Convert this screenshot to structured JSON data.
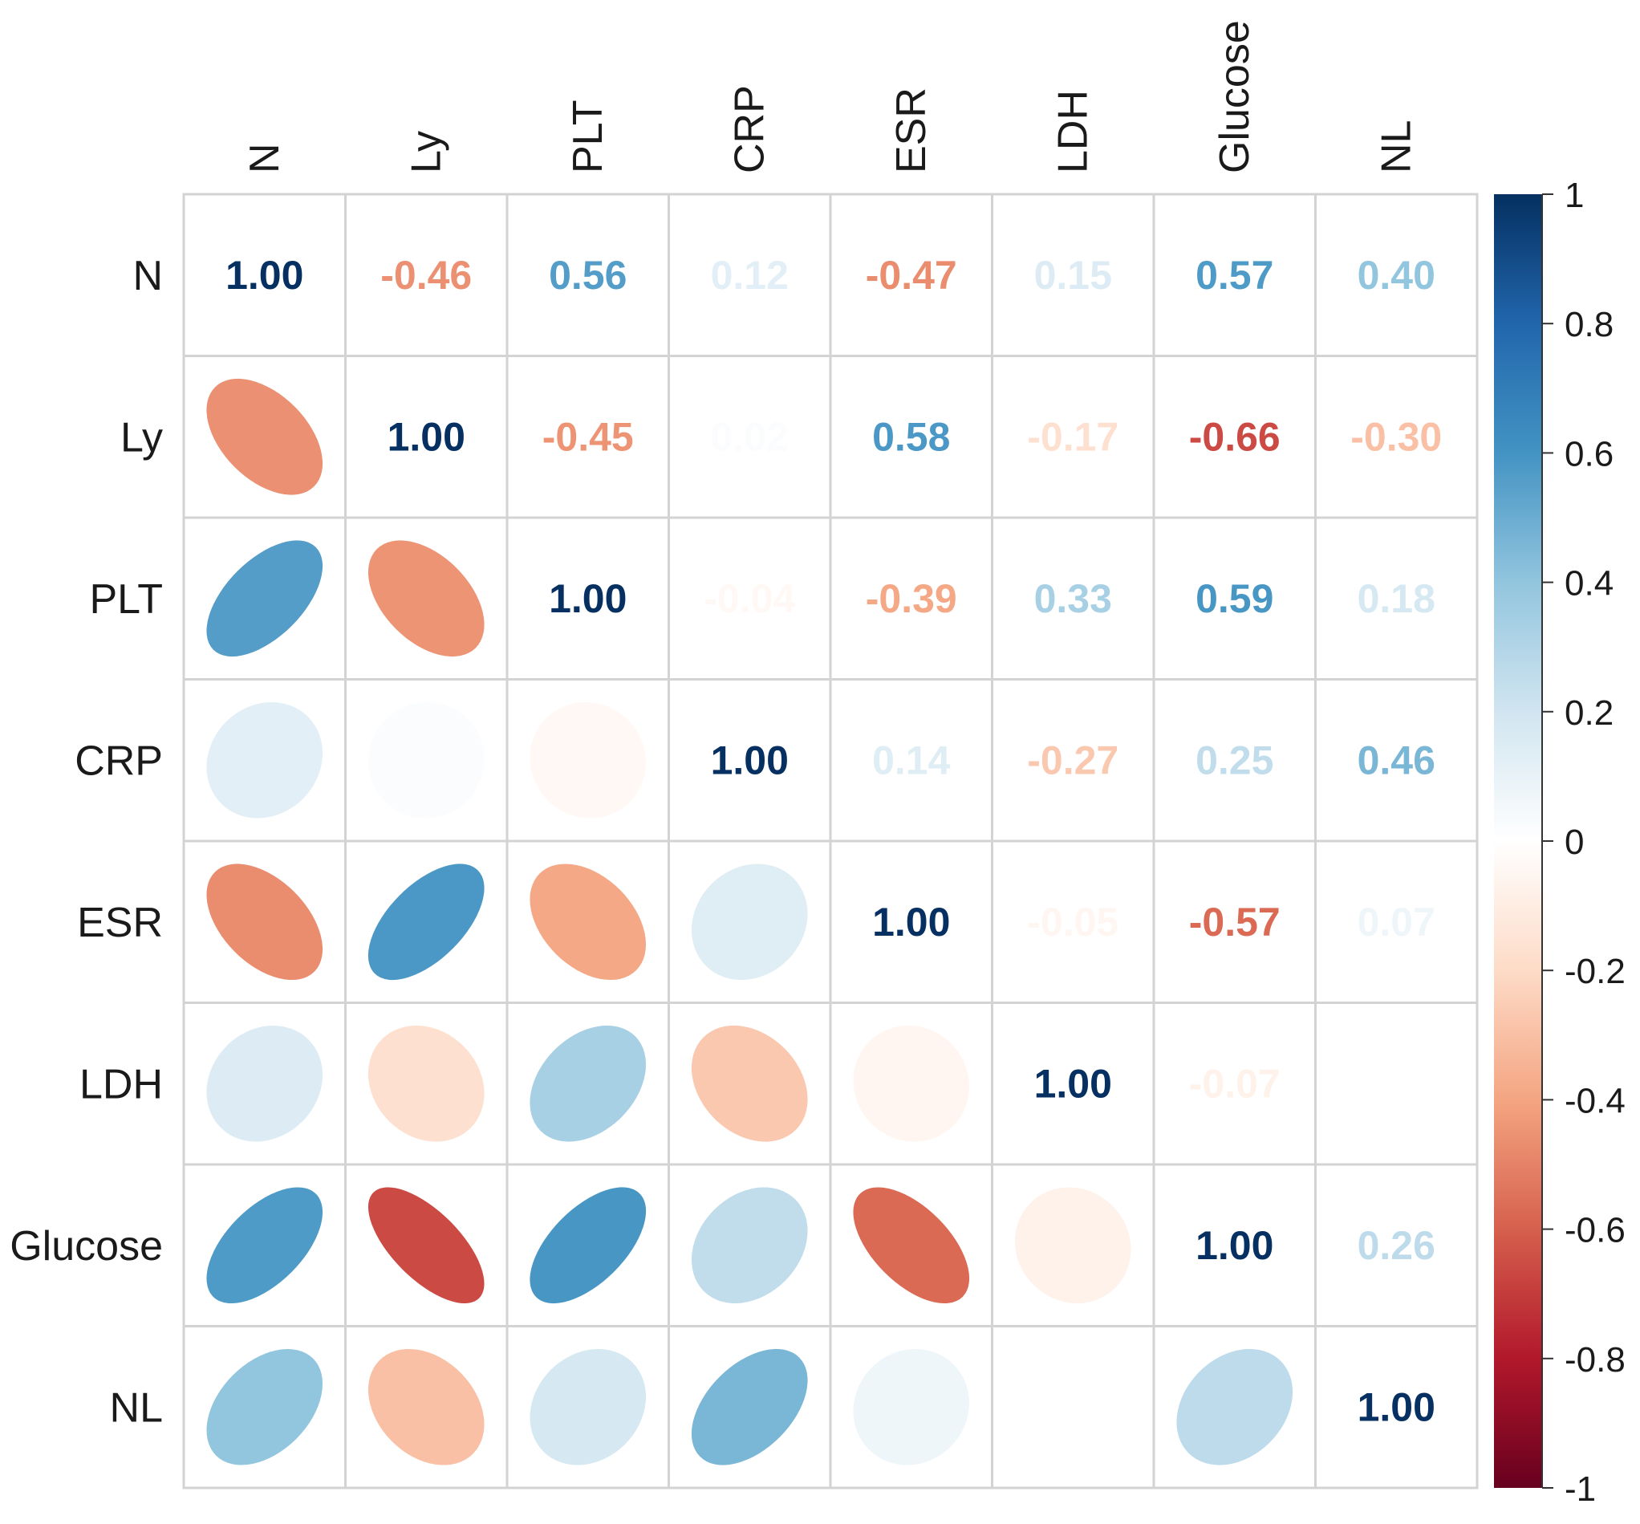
{
  "chart_data": {
    "type": "heatmap",
    "subtype": "correlation-matrix (lower: ellipses, upper: numbers)",
    "variables": [
      "N",
      "Ly",
      "PLT",
      "CRP",
      "ESR",
      "LDH",
      "Glucose",
      "NL"
    ],
    "matrix": [
      [
        1.0,
        -0.46,
        0.56,
        0.12,
        -0.47,
        0.15,
        0.57,
        0.4
      ],
      [
        -0.46,
        1.0,
        -0.45,
        0.02,
        0.58,
        -0.17,
        -0.66,
        -0.3
      ],
      [
        0.56,
        -0.45,
        1.0,
        -0.04,
        -0.39,
        0.33,
        0.59,
        0.18
      ],
      [
        0.12,
        0.02,
        -0.04,
        1.0,
        0.14,
        -0.27,
        0.25,
        0.46
      ],
      [
        -0.47,
        0.58,
        -0.39,
        0.14,
        1.0,
        -0.05,
        -0.57,
        0.07
      ],
      [
        0.15,
        -0.17,
        0.33,
        -0.27,
        -0.05,
        1.0,
        -0.07,
        0.0
      ],
      [
        0.57,
        -0.66,
        0.59,
        0.25,
        -0.57,
        -0.07,
        1.0,
        0.26
      ],
      [
        0.4,
        -0.3,
        0.18,
        0.46,
        0.07,
        0.0,
        0.26,
        1.0
      ]
    ],
    "upper_text": [
      [
        "1.00",
        "-0.46",
        "0.56",
        "0.12",
        "-0.47",
        "0.15",
        "0.57",
        "0.40"
      ],
      [
        "",
        "1.00",
        "-0.45",
        "0.02",
        "0.58",
        "-0.17",
        "-0.66",
        "-0.30"
      ],
      [
        "",
        "",
        "1.00",
        "-0.04",
        "-0.39",
        "0.33",
        "0.59",
        "0.18"
      ],
      [
        "",
        "",
        "",
        "1.00",
        "0.14",
        "-0.27",
        "0.25",
        "0.46"
      ],
      [
        "",
        "",
        "",
        "",
        "1.00",
        "-0.05",
        "-0.57",
        "0.07"
      ],
      [
        "",
        "",
        "",
        "",
        "",
        "1.00",
        "-0.07",
        ""
      ],
      [
        "",
        "",
        "",
        "",
        "",
        "",
        "1.00",
        "0.26"
      ],
      [
        "",
        "",
        "",
        "",
        "",
        "",
        "",
        "1.00"
      ]
    ],
    "colorbar": {
      "range": [
        -1,
        1
      ],
      "ticks": [
        "1",
        "0.8",
        "0.6",
        "0.4",
        "0.2",
        "0",
        "-0.2",
        "-0.4",
        "-0.6",
        "-0.8",
        "-1"
      ],
      "colors": [
        "#67001F",
        "#B2182B",
        "#D6604D",
        "#F4A582",
        "#FDDBC7",
        "#FFFFFF",
        "#D1E5F0",
        "#92C5DE",
        "#4393C3",
        "#2166AC",
        "#053061"
      ]
    },
    "grid": true,
    "legend": "right"
  }
}
